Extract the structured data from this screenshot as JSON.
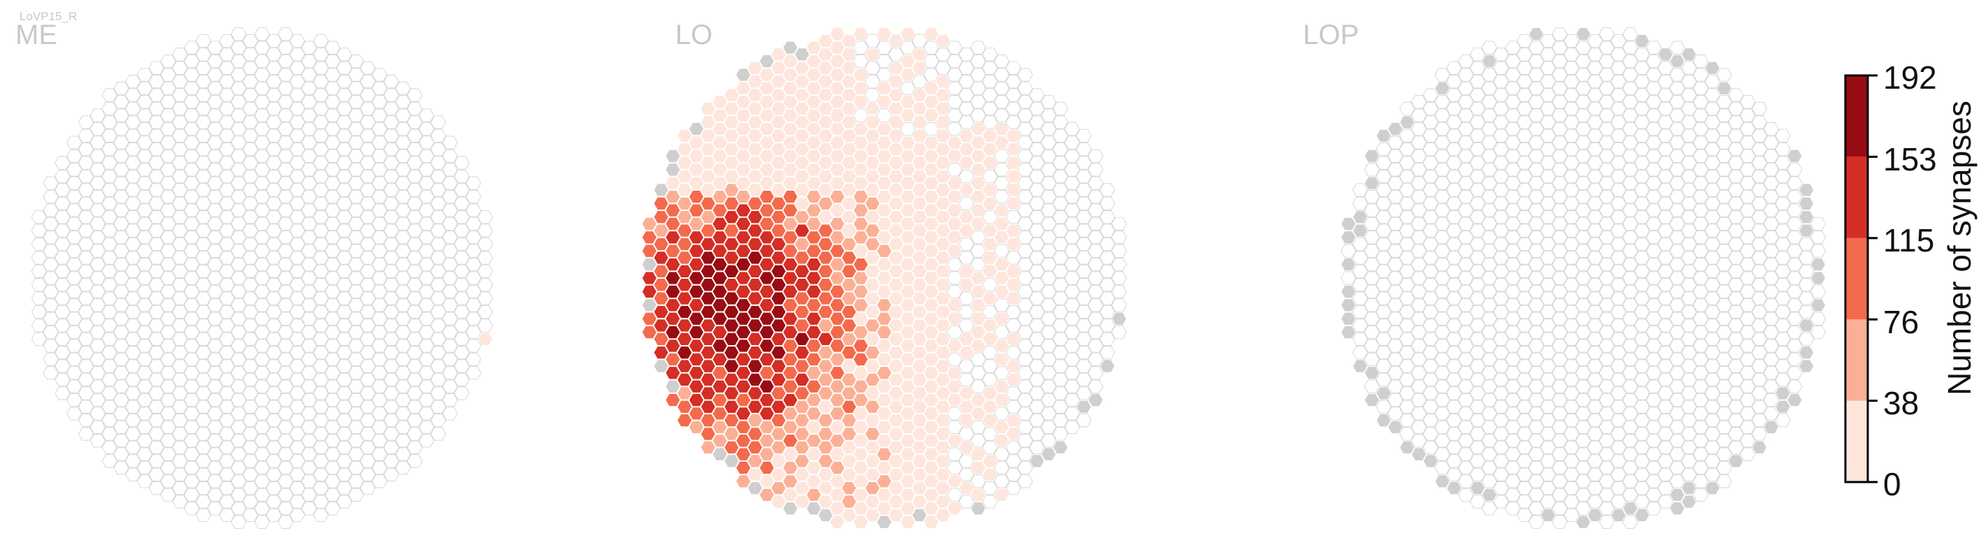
{
  "figure_label": "LoVP15_R",
  "panel_titles": [
    "ME",
    "LO",
    "LOP"
  ],
  "chart_data": {
    "type": "heatmap",
    "subtype": "hexagonal column map",
    "panels": [
      {
        "name": "ME",
        "max_value_shown": 30,
        "note": "nearly all columns 0; one column low (~25)"
      },
      {
        "name": "LO",
        "max_value_shown": 192,
        "note": "high counts concentrated on the lower-left region, decreasing toward the right"
      },
      {
        "name": "LOP",
        "max_value_shown": 0,
        "note": "no synapses; boundary columns shown grey"
      }
    ],
    "colorbar": {
      "title": "Number of synapses",
      "ticks": [
        0,
        38,
        76,
        115,
        153,
        192
      ],
      "range": [
        0,
        192
      ],
      "colors": [
        "#fee6dc",
        "#fbb096",
        "#f46a4c",
        "#d42e25",
        "#980d13"
      ]
    },
    "empty_cell_color": "#ffffff",
    "empty_cell_stroke": "#d8d8d8",
    "boundary_cell_color": "#cfcfcf"
  }
}
